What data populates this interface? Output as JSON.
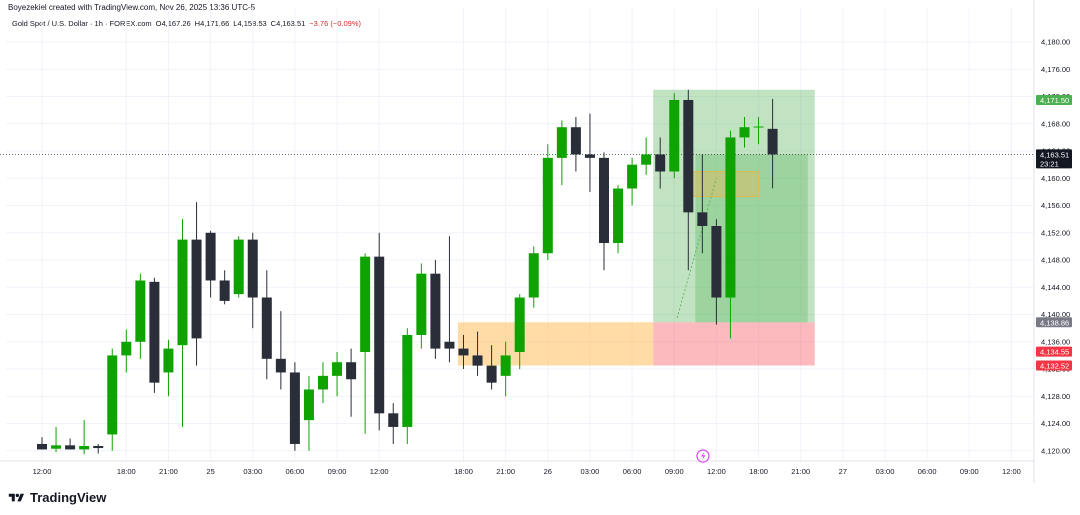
{
  "header": {
    "attribution": "Boyezekiel created with TradingView.com, Nov 26, 2025 13:36 UTC-5"
  },
  "legend": {
    "symbol": "Gold Spot / U.S. Dollar · 1h · FOREX.com",
    "open": "O4,167.26",
    "high": "H4,171.66",
    "low": "L4,158.53",
    "close": "C4,163.51",
    "change": "−3.76 (−0.09%)"
  },
  "footer": {
    "brand": "TradingView"
  },
  "colors": {
    "up": "#089981",
    "up_candle": "#0ea300",
    "down_candle": "#2a2e39",
    "grid": "#f0f3fa",
    "target_zone": "#4caf50",
    "stop_zone": "#f7525f",
    "demand_zone": "#ffb74d",
    "small_zone": "#d4c06a"
  },
  "chart_data": {
    "type": "candlestick",
    "title": "",
    "ylim": [
      4118.5,
      4185
    ],
    "y_ticks": [
      4120,
      4124,
      4128,
      4132,
      4136,
      4140,
      4144,
      4148,
      4152,
      4156,
      4160,
      4164,
      4168,
      4172,
      4176,
      4180
    ],
    "y_tick_labels": [
      "4,120.00",
      "4,124.00",
      "4,128.00",
      "4,132.00",
      "4,136.00",
      "4,140.00",
      "4,144.00",
      "4,148.00",
      "4,152.00",
      "4,156.00",
      "4,160.00",
      "4,164.00",
      "4,168.00",
      "4,172.00",
      "4,176.00",
      "4,180.00"
    ],
    "x_ticks": [
      {
        "bar": 0,
        "label": "12:00"
      },
      {
        "bar": 6,
        "label": "18:00"
      },
      {
        "bar": 9,
        "label": "21:00"
      },
      {
        "bar": 12,
        "label": "25"
      },
      {
        "bar": 15,
        "label": "03:00"
      },
      {
        "bar": 18,
        "label": "06:00"
      },
      {
        "bar": 21,
        "label": "09:00"
      },
      {
        "bar": 24,
        "label": "12:00"
      },
      {
        "bar": 30,
        "label": "18:00"
      },
      {
        "bar": 33,
        "label": "21:00"
      },
      {
        "bar": 36,
        "label": "26"
      },
      {
        "bar": 39,
        "label": "03:00"
      },
      {
        "bar": 42,
        "label": "06:00"
      },
      {
        "bar": 45,
        "label": "09:00"
      },
      {
        "bar": 48,
        "label": "12:00"
      },
      {
        "bar": 51,
        "label": "18:00"
      },
      {
        "bar": 54,
        "label": "21:00"
      },
      {
        "bar": 57,
        "label": "27"
      },
      {
        "bar": 60,
        "label": "03:00"
      },
      {
        "bar": 63,
        "label": "06:00"
      },
      {
        "bar": 66,
        "label": "09:00"
      },
      {
        "bar": 69,
        "label": "12:00"
      }
    ],
    "candles": [
      {
        "o": 4121.0,
        "h": 4122.0,
        "l": 4120.2,
        "c": 4120.2
      },
      {
        "o": 4120.3,
        "h": 4123.5,
        "l": 4119.8,
        "c": 4120.8
      },
      {
        "o": 4120.8,
        "h": 4121.8,
        "l": 4120.2,
        "c": 4120.2
      },
      {
        "o": 4120.2,
        "h": 4124.5,
        "l": 4119.5,
        "c": 4120.7
      },
      {
        "o": 4120.7,
        "h": 4121.0,
        "l": 4119.6,
        "c": 4120.4
      },
      {
        "o": 4122.4,
        "h": 4135.0,
        "l": 4120.0,
        "c": 4134.0
      },
      {
        "o": 4134.0,
        "h": 4137.8,
        "l": 4131.5,
        "c": 4136.0
      },
      {
        "o": 4136.0,
        "h": 4146.0,
        "l": 4133.5,
        "c": 4145.0
      },
      {
        "o": 4144.8,
        "h": 4145.4,
        "l": 4128.5,
        "c": 4130.0
      },
      {
        "o": 4131.5,
        "h": 4136.3,
        "l": 4128.0,
        "c": 4135.0
      },
      {
        "o": 4135.5,
        "h": 4154.0,
        "l": 4123.5,
        "c": 4151.0
      },
      {
        "o": 4151.0,
        "h": 4156.5,
        "l": 4132.5,
        "c": 4136.5
      },
      {
        "o": 4152.0,
        "h": 4152.3,
        "l": 4142.5,
        "c": 4145.0
      },
      {
        "o": 4145.0,
        "h": 4146.5,
        "l": 4141.5,
        "c": 4142.0
      },
      {
        "o": 4143.0,
        "h": 4151.5,
        "l": 4142.5,
        "c": 4151.0
      },
      {
        "o": 4151.0,
        "h": 4152.0,
        "l": 4138.0,
        "c": 4142.5
      },
      {
        "o": 4142.5,
        "h": 4146.5,
        "l": 4130.5,
        "c": 4133.5
      },
      {
        "o": 4133.5,
        "h": 4140.5,
        "l": 4129.0,
        "c": 4131.5
      },
      {
        "o": 4131.5,
        "h": 4133.0,
        "l": 4120.0,
        "c": 4121.0
      },
      {
        "o": 4124.5,
        "h": 4131.0,
        "l": 4120.0,
        "c": 4129.0
      },
      {
        "o": 4129.0,
        "h": 4133.0,
        "l": 4127.0,
        "c": 4131.0
      },
      {
        "o": 4131.0,
        "h": 4134.5,
        "l": 4128.0,
        "c": 4133.0
      },
      {
        "o": 4133.0,
        "h": 4135.0,
        "l": 4125.0,
        "c": 4130.5
      },
      {
        "o": 4134.5,
        "h": 4149.0,
        "l": 4122.5,
        "c": 4148.5
      },
      {
        "o": 4148.5,
        "h": 4152.0,
        "l": 4123.0,
        "c": 4125.5
      },
      {
        "o": 4125.5,
        "h": 4127.0,
        "l": 4121.0,
        "c": 4123.5
      },
      {
        "o": 4123.5,
        "h": 4138.0,
        "l": 4121.0,
        "c": 4137.0
      },
      {
        "o": 4137.0,
        "h": 4147.5,
        "l": 4135.0,
        "c": 4146.0
      },
      {
        "o": 4146.0,
        "h": 4148.0,
        "l": 4133.5,
        "c": 4135.0
      },
      {
        "o": 4136.0,
        "h": 4151.5,
        "l": 4133.0,
        "c": 4135.0
      },
      {
        "o": 4135.0,
        "h": 4137.0,
        "l": 4132.0,
        "c": 4134.0
      },
      {
        "o": 4134.0,
        "h": 4137.5,
        "l": 4131.0,
        "c": 4132.5
      },
      {
        "o": 4132.5,
        "h": 4135.5,
        "l": 4129.0,
        "c": 4130.0
      },
      {
        "o": 4131.0,
        "h": 4136.0,
        "l": 4128.0,
        "c": 4134.0
      },
      {
        "o": 4134.5,
        "h": 4143.0,
        "l": 4132.0,
        "c": 4142.5
      },
      {
        "o": 4142.5,
        "h": 4150.0,
        "l": 4141.0,
        "c": 4149.0
      },
      {
        "o": 4149.0,
        "h": 4165.0,
        "l": 4148.0,
        "c": 4163.0
      },
      {
        "o": 4163.0,
        "h": 4168.5,
        "l": 4159.0,
        "c": 4167.5
      },
      {
        "o": 4167.5,
        "h": 4169.0,
        "l": 4161.0,
        "c": 4163.5
      },
      {
        "o": 4163.5,
        "h": 4169.5,
        "l": 4158.0,
        "c": 4163.0
      },
      {
        "o": 4163.0,
        "h": 4163.8,
        "l": 4146.5,
        "c": 4150.5
      },
      {
        "o": 4150.5,
        "h": 4159.0,
        "l": 4149.0,
        "c": 4158.5
      },
      {
        "o": 4158.5,
        "h": 4163.0,
        "l": 4156.0,
        "c": 4162.0
      },
      {
        "o": 4162.0,
        "h": 4166.0,
        "l": 4160.5,
        "c": 4163.5
      },
      {
        "o": 4163.5,
        "h": 4166.0,
        "l": 4158.5,
        "c": 4161.0
      },
      {
        "o": 4161.0,
        "h": 4172.5,
        "l": 4160.0,
        "c": 4171.5
      },
      {
        "o": 4171.5,
        "h": 4173.0,
        "l": 4146.5,
        "c": 4155.0
      },
      {
        "o": 4155.0,
        "h": 4163.5,
        "l": 4149.0,
        "c": 4153.0
      },
      {
        "o": 4153.0,
        "h": 4154.0,
        "l": 4138.5,
        "c": 4142.5
      },
      {
        "o": 4142.5,
        "h": 4167.0,
        "l": 4136.5,
        "c": 4166.0
      },
      {
        "o": 4166.0,
        "h": 4169.0,
        "l": 4164.5,
        "c": 4167.5
      },
      {
        "o": 4167.5,
        "h": 4169.0,
        "l": 4165.0,
        "c": 4167.6
      },
      {
        "o": 4167.26,
        "h": 4171.66,
        "l": 4158.53,
        "c": 4163.51
      }
    ],
    "price_tags": [
      {
        "price": 4171.5,
        "label": "4,171.50",
        "color": "#4caf50"
      },
      {
        "price": 4163.51,
        "label": "4,163.51",
        "sublabel": "23:21",
        "color": "#131722"
      },
      {
        "price": 4138.86,
        "label": "4,138.86",
        "color": "#787b86"
      },
      {
        "price": 4134.55,
        "label": "4,134.55",
        "color": "#f23645"
      },
      {
        "price": 4132.52,
        "label": "4,132.52",
        "color": "#f23645"
      }
    ],
    "current_price": 4163.51,
    "position": {
      "entry": 4138.86,
      "target": 4173.0,
      "stop": 4132.52,
      "start_bar": 44,
      "end_bar": 55
    },
    "zones": [
      {
        "name": "demand-zone",
        "top": 4138.86,
        "bottom": 4132.52,
        "start_bar": 29.6,
        "end_bar": 44
      },
      {
        "name": "small-zone",
        "top": 4161.0,
        "bottom": 4157.3,
        "start_bar": 46.3,
        "end_bar": 51.5
      }
    ]
  }
}
